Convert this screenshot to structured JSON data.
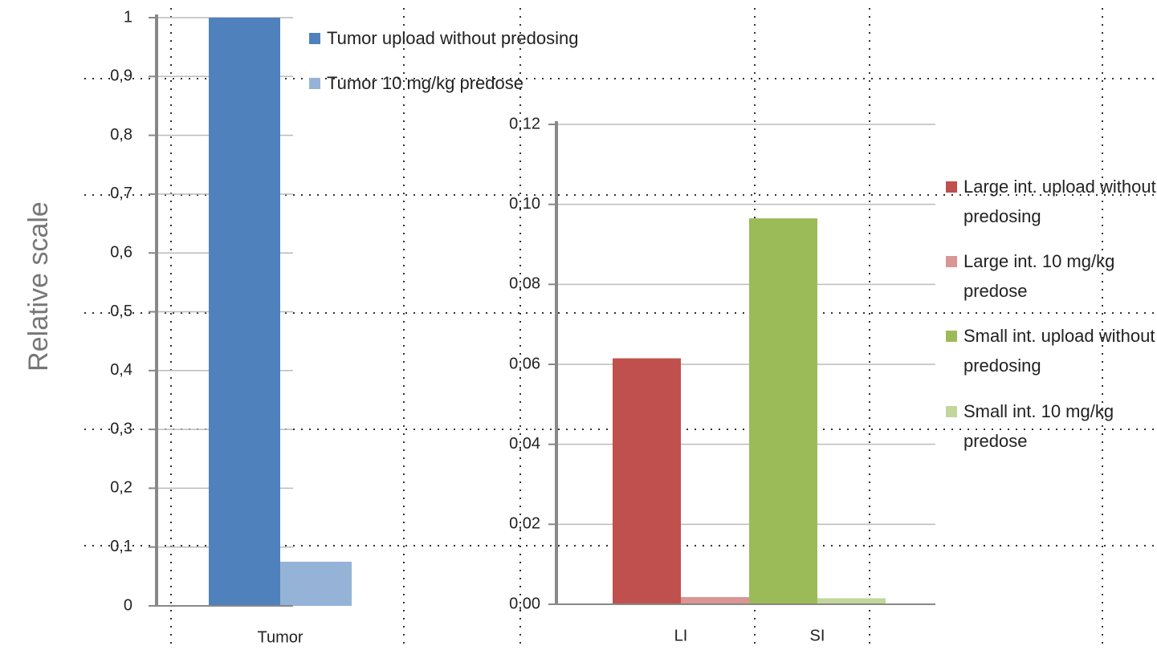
{
  "chart_data": [
    {
      "type": "bar",
      "ylabel": "Relative scale",
      "categories": [
        "Tumor"
      ],
      "series": [
        {
          "name": "Tumor upload without predosing",
          "color": "#4f81bd",
          "values": [
            1
          ]
        },
        {
          "name": "Tumor 10 mg/kg predose",
          "color": "#95b3d7",
          "values": [
            0.075
          ]
        }
      ],
      "ylim": [
        0,
        1
      ],
      "yticks": [
        0,
        {
          "value": 0.1,
          "label": "0,1"
        },
        {
          "value": 0.2,
          "label": "0,2"
        },
        {
          "value": 0.3,
          "label": "0,3"
        },
        {
          "value": 0.4,
          "label": "0,4"
        },
        {
          "value": 0.5,
          "label": "0,5"
        },
        {
          "value": 0.6,
          "label": "0,6"
        },
        {
          "value": 0.7,
          "label": "0,7"
        },
        {
          "value": 0.8,
          "label": "0,8"
        },
        {
          "value": 0.9,
          "label": "0,9"
        },
        1
      ],
      "grid": true
    },
    {
      "type": "bar",
      "categories": [
        "LI",
        "SI"
      ],
      "series": [
        {
          "name": "Large int. upload without predosing",
          "color": "#c0504d",
          "values": [
            0.0615,
            null
          ]
        },
        {
          "name": "Large int. 10 mg/kg predose",
          "color": "#d99694",
          "values": [
            0.0018,
            null
          ]
        },
        {
          "name": "Small int. upload without predosing",
          "color": "#9bbb59",
          "values": [
            null,
            0.0965
          ]
        },
        {
          "name": "Small int. 10 mg/kg predose",
          "color": "#c3d69b",
          "values": [
            null,
            0.0015
          ]
        }
      ],
      "ylim": [
        0,
        0.12
      ],
      "yticks": [
        {
          "value": 0,
          "label": "0,00"
        },
        {
          "value": 0.02,
          "label": "0,02"
        },
        {
          "value": 0.04,
          "label": "0,04"
        },
        {
          "value": 0.06,
          "label": "0,06"
        },
        {
          "value": 0.08,
          "label": "0,08"
        },
        {
          "value": 0.1,
          "label": "0,10"
        },
        {
          "value": 0.12,
          "label": "0,12"
        }
      ],
      "grid": true
    }
  ]
}
